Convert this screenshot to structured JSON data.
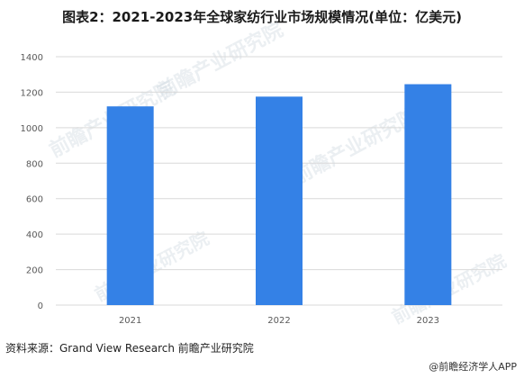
{
  "title": "图表2：2021-2023年全球家纺行业市场规模情况(单位：亿美元)",
  "source": "资料来源：Grand View Research 前瞻产业研究院",
  "credit": "@前瞻经济学人APP",
  "watermark": "前瞻产业研究院",
  "colors": {
    "bar": "#3481e6",
    "grid": "#d9d9d9",
    "tick": "#595959"
  },
  "chart_data": {
    "type": "bar",
    "title": "图表2：2021-2023年全球家纺行业市场规模情况(单位：亿美元)",
    "categories": [
      "2021",
      "2022",
      "2023"
    ],
    "values": [
      1120,
      1175,
      1245
    ],
    "ylim": [
      0,
      1400
    ],
    "yticks": [
      0,
      200,
      400,
      600,
      800,
      1000,
      1200,
      1400
    ],
    "grid": true,
    "legend": "none",
    "xlabel": "",
    "ylabel": ""
  }
}
